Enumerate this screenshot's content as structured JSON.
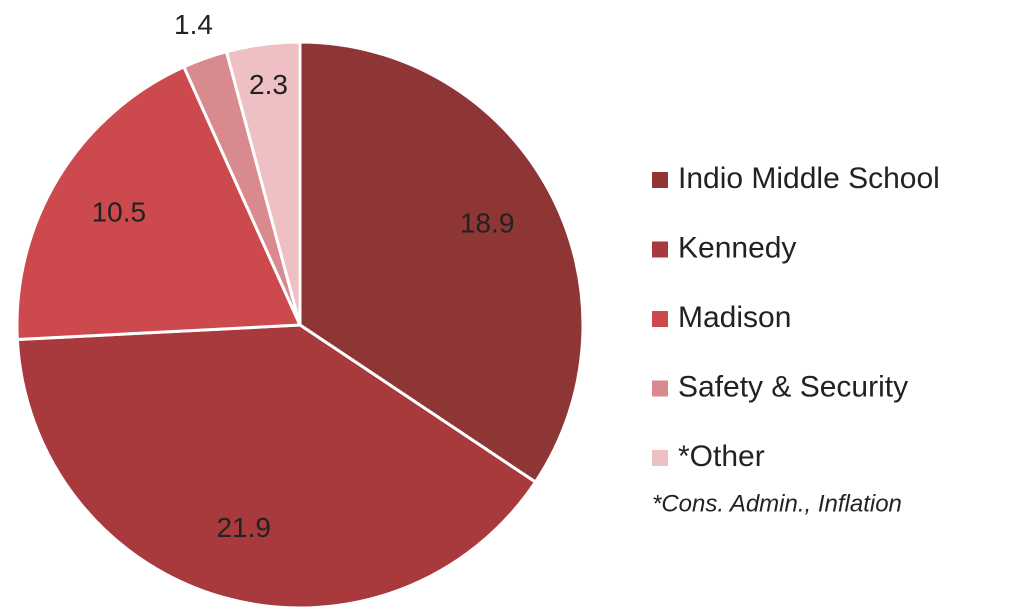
{
  "chart_data": {
    "type": "pie",
    "categories": [
      "Indio Middle School",
      "Kennedy",
      "Madison",
      "Safety & Security",
      "*Other"
    ],
    "values": [
      18.9,
      21.9,
      10.5,
      1.4,
      2.3
    ],
    "colors": [
      "#8e3535",
      "#a8393d",
      "#cc4a4e",
      "#d98a8e",
      "#eebfc3"
    ],
    "note": "*Cons. Admin., Inflation",
    "legend": "right"
  }
}
